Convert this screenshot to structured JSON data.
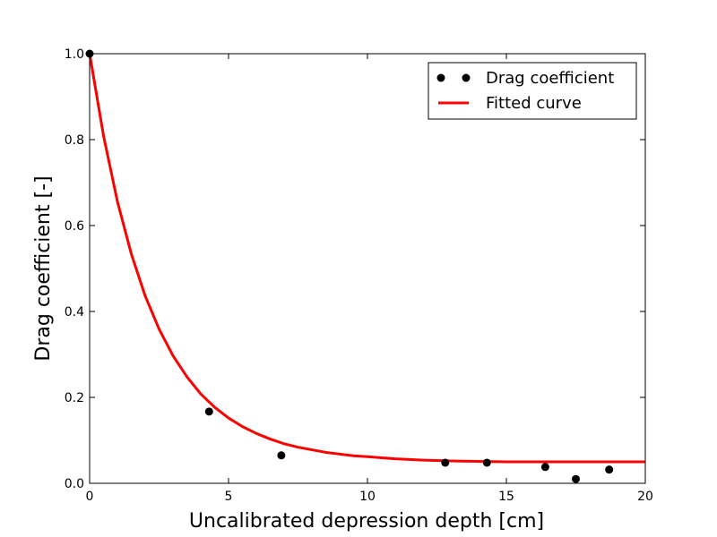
{
  "chart_data": {
    "type": "scatter",
    "title": "",
    "xlabel": "Uncalibrated depression depth [cm]",
    "ylabel": "Drag coefficient [-]",
    "xlim": [
      0,
      20
    ],
    "ylim": [
      0,
      1.0
    ],
    "x_ticks": [
      0,
      5,
      10,
      15,
      20
    ],
    "y_ticks": [
      0.0,
      0.2,
      0.4,
      0.6,
      0.8,
      1.0
    ],
    "x_tick_labels": [
      "0",
      "5",
      "10",
      "15",
      "20"
    ],
    "y_tick_labels": [
      "0.0",
      "0.2",
      "0.4",
      "0.6",
      "0.8",
      "1.0"
    ],
    "grid": false,
    "legend_position": "top-right",
    "series": [
      {
        "name": "Drag coefficient",
        "kind": "points",
        "color": "#000000",
        "x": [
          0.0,
          4.3,
          6.9,
          12.8,
          14.3,
          16.4,
          17.5,
          18.7
        ],
        "y": [
          1.0,
          0.167,
          0.065,
          0.048,
          0.048,
          0.038,
          0.01,
          0.032
        ]
      },
      {
        "name": "Fitted curve",
        "kind": "line",
        "color": "#ff0000",
        "x": [
          0,
          0.5,
          1,
          1.5,
          2,
          2.5,
          3,
          3.5,
          4,
          4.5,
          5,
          5.5,
          6,
          6.5,
          7,
          7.5,
          8,
          8.5,
          9,
          9.5,
          10,
          11,
          12,
          13,
          14,
          15,
          16,
          17,
          18,
          19,
          20
        ],
        "y": [
          1.0,
          0.809,
          0.656,
          0.534,
          0.436,
          0.359,
          0.297,
          0.248,
          0.208,
          0.177,
          0.152,
          0.132,
          0.116,
          0.103,
          0.092,
          0.084,
          0.078,
          0.072,
          0.068,
          0.064,
          0.062,
          0.057,
          0.054,
          0.052,
          0.051,
          0.05,
          0.05,
          0.05,
          0.05,
          0.05,
          0.05
        ]
      }
    ]
  }
}
